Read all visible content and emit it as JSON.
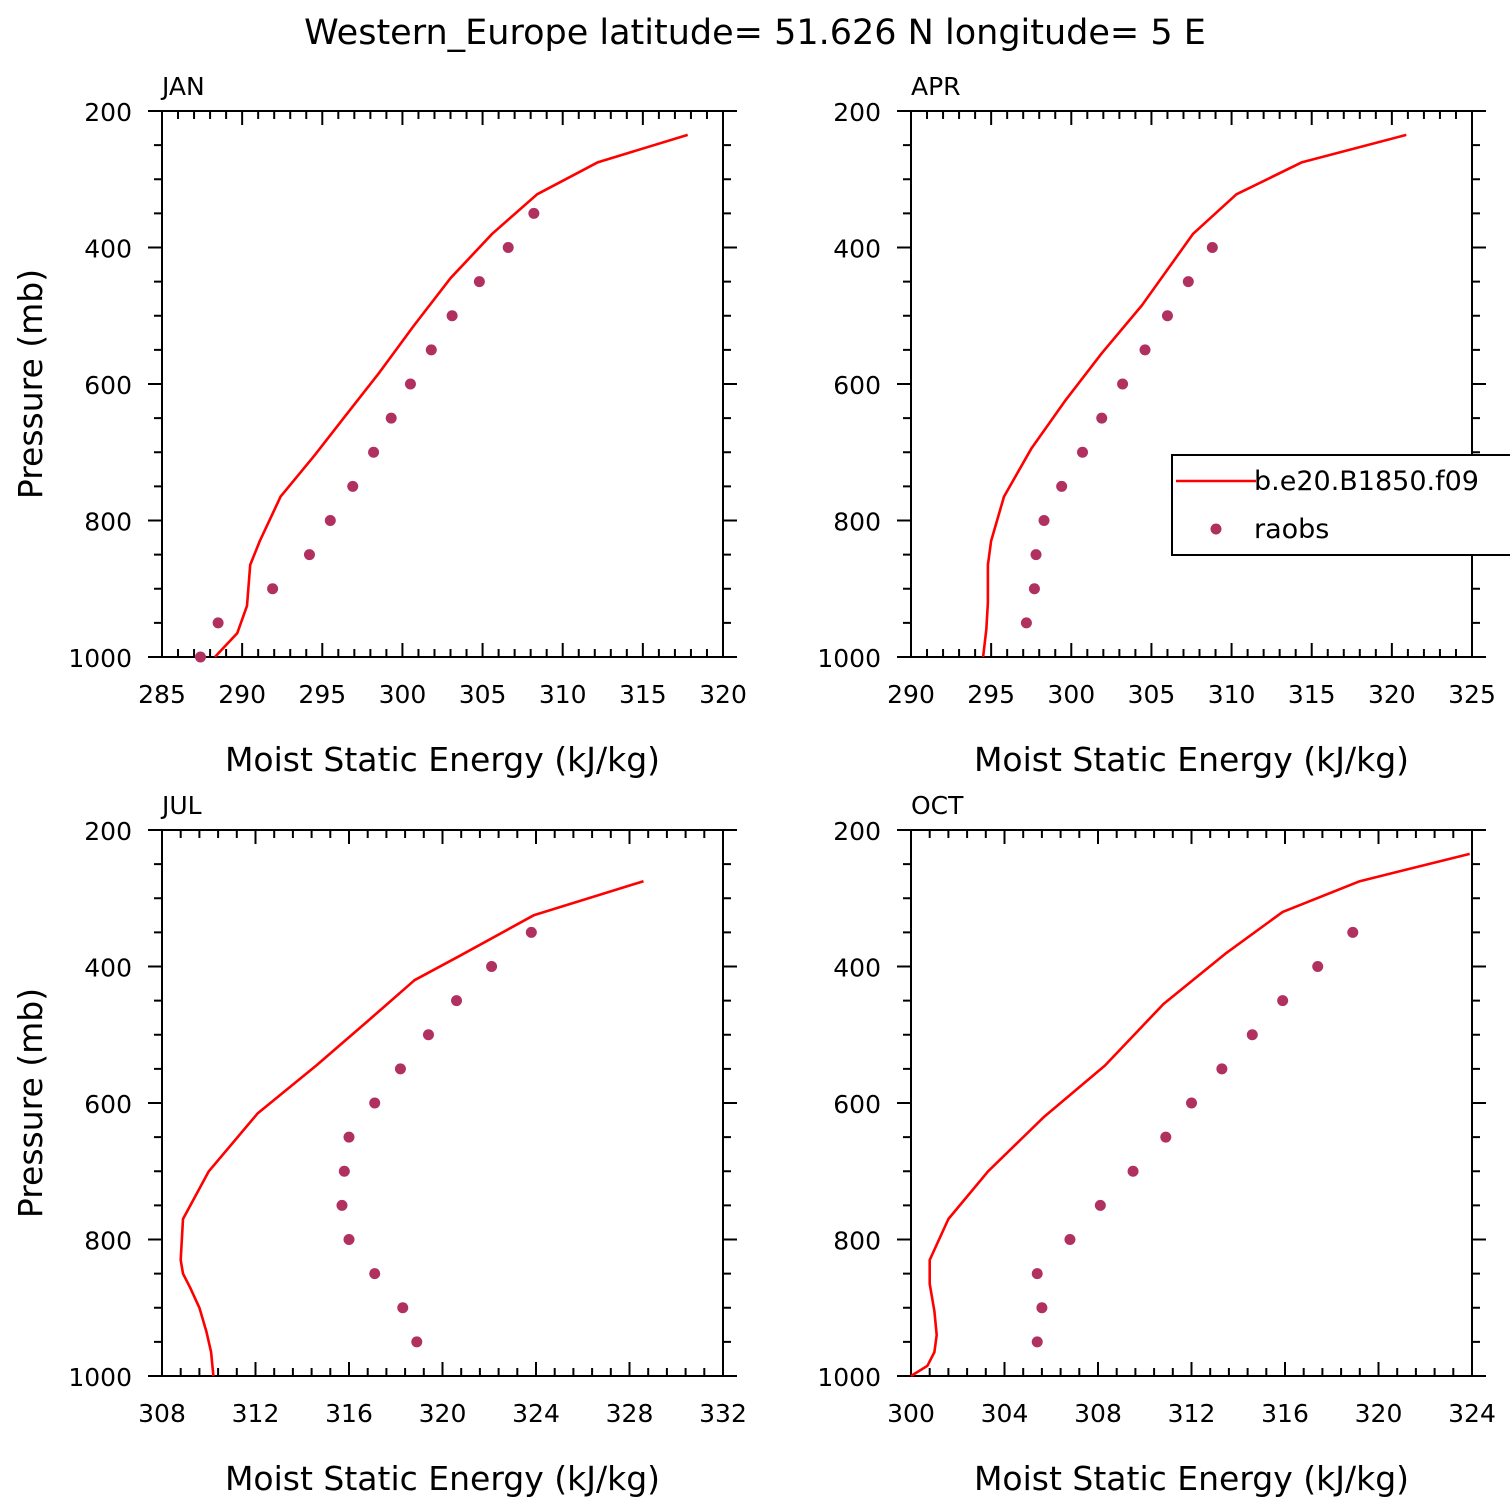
{
  "title": "Western_Europe  latitude= 51.626 N longitude= 5 E",
  "colors": {
    "model": "#ff0000",
    "obs": "#b03060",
    "axis": "#000000"
  },
  "legend": {
    "panel": 1,
    "placement": "right",
    "entries": [
      {
        "label": "b.e20.B1850.f09",
        "marker": "line",
        "color": "#ff0000"
      },
      {
        "label": "raobs",
        "marker": "dot",
        "color": "#b03060"
      }
    ]
  },
  "chart_data": [
    {
      "type": "line",
      "panel_label": "JAN",
      "xlabel": "Moist Static Energy (kJ/kg)",
      "ylabel": "Pressure (mb)",
      "xlim": [
        285,
        320
      ],
      "xticks": [
        285,
        290,
        295,
        300,
        305,
        310,
        315,
        320
      ],
      "ylim": [
        1000,
        200
      ],
      "yticks": [
        200,
        400,
        600,
        800,
        1000
      ],
      "series": [
        {
          "name": "b.e20.B1850.f09",
          "kind": "line",
          "color": "#ff0000",
          "x": [
            288.3,
            289.7,
            290.3,
            290.5,
            291.1,
            292.4,
            294.5,
            296.5,
            298.5,
            300.7,
            303.0,
            305.6,
            308.4,
            312.2,
            317.8
          ],
          "y": [
            1000,
            965,
            925,
            865,
            830,
            765,
            705,
            645,
            585,
            515,
            445,
            380,
            322,
            275,
            235
          ]
        },
        {
          "name": "raobs",
          "kind": "scatter",
          "color": "#b03060",
          "x": [
            287.4,
            288.5,
            291.9,
            294.2,
            295.5,
            296.9,
            298.2,
            299.3,
            300.5,
            301.8,
            303.1,
            304.8,
            306.6,
            308.2
          ],
          "y": [
            1000,
            950,
            900,
            850,
            800,
            750,
            700,
            650,
            600,
            550,
            500,
            450,
            400,
            350
          ]
        }
      ]
    },
    {
      "type": "line",
      "panel_label": "APR",
      "xlabel": "Moist Static Energy (kJ/kg)",
      "ylabel": "",
      "xlim": [
        290,
        325
      ],
      "xticks": [
        290,
        295,
        300,
        305,
        310,
        315,
        320,
        325
      ],
      "ylim": [
        1000,
        200
      ],
      "yticks": [
        200,
        400,
        600,
        800,
        1000
      ],
      "series": [
        {
          "name": "b.e20.B1850.f09",
          "kind": "line",
          "color": "#ff0000",
          "x": [
            294.5,
            294.7,
            294.8,
            294.8,
            295.0,
            295.8,
            297.5,
            299.6,
            301.9,
            304.4,
            307.6,
            310.3,
            314.4,
            320.9
          ],
          "y": [
            1000,
            960,
            920,
            865,
            830,
            765,
            695,
            625,
            555,
            485,
            380,
            322,
            275,
            235
          ]
        },
        {
          "name": "raobs",
          "kind": "scatter",
          "color": "#b03060",
          "x": [
            297.2,
            297.7,
            297.8,
            298.3,
            299.4,
            300.7,
            301.9,
            303.2,
            304.6,
            306.0,
            307.3,
            308.8
          ],
          "y": [
            950,
            900,
            850,
            800,
            750,
            700,
            650,
            600,
            550,
            500,
            450,
            400
          ]
        }
      ]
    },
    {
      "type": "line",
      "panel_label": "JUL",
      "xlabel": "Moist Static Energy (kJ/kg)",
      "ylabel": "Pressure (mb)",
      "xlim": [
        308,
        332
      ],
      "xticks": [
        308,
        312,
        316,
        320,
        324,
        328,
        332
      ],
      "ylim": [
        1000,
        200
      ],
      "yticks": [
        200,
        400,
        600,
        800,
        1000
      ],
      "series": [
        {
          "name": "b.e20.B1850.f09",
          "kind": "line",
          "color": "#ff0000",
          "x": [
            310.2,
            310.1,
            309.9,
            309.6,
            309.2,
            308.9,
            308.8,
            308.9,
            310.0,
            312.1,
            314.6,
            316.8,
            318.8,
            320.7,
            323.9,
            328.6
          ],
          "y": [
            1000,
            965,
            935,
            900,
            870,
            850,
            830,
            770,
            700,
            615,
            545,
            480,
            420,
            385,
            325,
            275
          ]
        },
        {
          "name": "raobs",
          "kind": "scatter",
          "color": "#b03060",
          "x": [
            318.9,
            318.3,
            317.1,
            316.0,
            315.7,
            315.8,
            316.0,
            317.1,
            318.2,
            319.4,
            320.6,
            322.1,
            323.8
          ],
          "y": [
            950,
            900,
            850,
            800,
            750,
            700,
            650,
            600,
            550,
            500,
            450,
            400,
            350
          ]
        }
      ]
    },
    {
      "type": "line",
      "panel_label": "OCT",
      "xlabel": "Moist Static Energy (kJ/kg)",
      "ylabel": "",
      "xlim": [
        300,
        324
      ],
      "xticks": [
        300,
        304,
        308,
        312,
        316,
        320,
        324
      ],
      "ylim": [
        1000,
        200
      ],
      "yticks": [
        200,
        400,
        600,
        800,
        1000
      ],
      "series": [
        {
          "name": "b.e20.B1850.f09",
          "kind": "line",
          "color": "#ff0000",
          "x": [
            300.0,
            300.7,
            301.0,
            301.1,
            301.0,
            300.8,
            300.8,
            301.6,
            303.3,
            305.7,
            308.3,
            310.8,
            313.5,
            315.9,
            319.2,
            323.9
          ],
          "y": [
            1000,
            985,
            965,
            940,
            905,
            865,
            830,
            770,
            700,
            620,
            545,
            455,
            380,
            320,
            275,
            235
          ]
        },
        {
          "name": "raobs",
          "kind": "scatter",
          "color": "#b03060",
          "x": [
            305.4,
            305.6,
            305.4,
            306.8,
            308.1,
            309.5,
            310.9,
            312.0,
            313.3,
            314.6,
            315.9,
            317.4,
            318.9
          ],
          "y": [
            950,
            900,
            850,
            800,
            750,
            700,
            650,
            600,
            550,
            500,
            450,
            400,
            350
          ]
        }
      ]
    }
  ]
}
